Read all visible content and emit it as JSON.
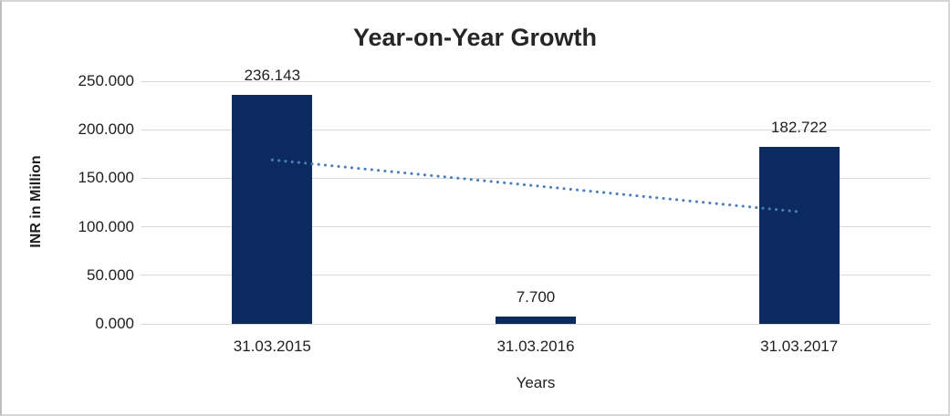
{
  "chart_data": {
    "type": "bar",
    "title": "Year-on-Year Growth",
    "xlabel": "Years",
    "ylabel": "INR in Million",
    "categories": [
      "31.03.2015",
      "31.03.2016",
      "31.03.2017"
    ],
    "values": [
      236.143,
      7.7,
      182.722
    ],
    "data_labels": [
      "236.143",
      "7.700",
      "182.722"
    ],
    "ylim": [
      0,
      250
    ],
    "ytick_step": 50,
    "ytick_labels": [
      "0.000",
      "50.000",
      "100.000",
      "150.000",
      "200.000",
      "250.000"
    ],
    "grid": true,
    "legend": false,
    "trendline": {
      "type": "linear",
      "style": "dotted",
      "endpoints_value": [
        168.9,
        115.5
      ]
    },
    "colors": {
      "bar": "#0b2a60",
      "trendline": "#4a7ebb",
      "gridline": "#d9d9d9",
      "text": "#1f1f1f",
      "title": "#262626"
    }
  }
}
